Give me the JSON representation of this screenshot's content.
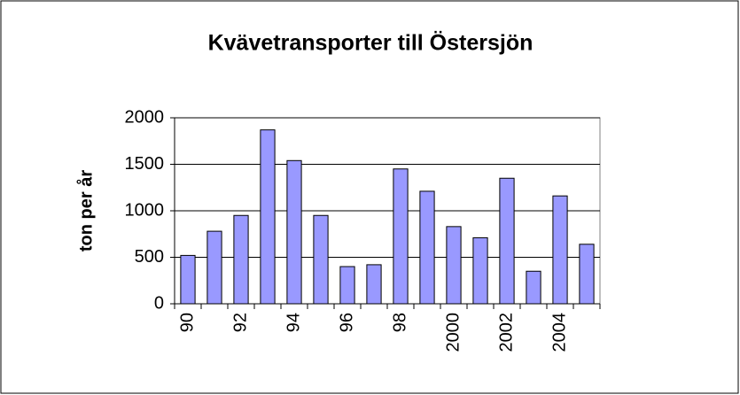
{
  "chart_data": {
    "type": "bar",
    "title": "Kvävetransporter till Östersjön",
    "y_label": "ton per år",
    "categories": [
      "90",
      null,
      "92",
      null,
      "94",
      null,
      "96",
      null,
      "98",
      null,
      "2000",
      null,
      "2002",
      null,
      "2004",
      null
    ],
    "values": [
      520,
      780,
      950,
      1870,
      1540,
      950,
      400,
      420,
      1450,
      1210,
      830,
      710,
      1350,
      350,
      1160,
      640
    ],
    "color": "#9999ff",
    "ylim": [
      0,
      2000
    ],
    "yticks": [
      0,
      500,
      1000,
      1500,
      2000
    ],
    "grid": true
  }
}
